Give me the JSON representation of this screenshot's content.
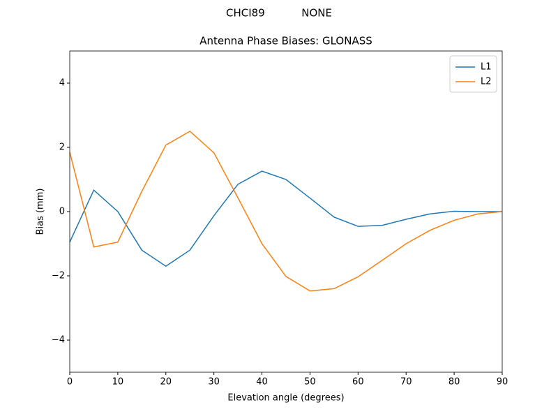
{
  "chart_data": {
    "type": "line",
    "suptitle": "CHCI89           NONE",
    "title": "Antenna Phase Biases: GLONASS",
    "x_label": "Elevation angle (degrees)",
    "y_label": "Bias (mm)",
    "x": [
      0,
      5,
      10,
      15,
      20,
      25,
      30,
      35,
      40,
      45,
      50,
      55,
      60,
      65,
      70,
      75,
      80,
      85,
      90
    ],
    "series": [
      {
        "name": "L1",
        "color": "#1f77b4",
        "values": [
          -0.95,
          0.67,
          0,
          -1.2,
          -1.7,
          -1.2,
          -0.13,
          0.85,
          1.26,
          1.0,
          0.42,
          -0.17,
          -0.46,
          -0.43,
          -0.24,
          -0.07,
          0.01,
          0,
          0
        ]
      },
      {
        "name": "L2",
        "color": "#ff7f0e",
        "values": [
          1.85,
          -1.1,
          -0.95,
          0.63,
          2.07,
          2.5,
          1.83,
          0.43,
          -1.0,
          -2.02,
          -2.47,
          -2.4,
          -2.03,
          -1.52,
          -1.0,
          -0.58,
          -0.27,
          -0.07,
          0
        ]
      }
    ],
    "xlim": [
      0,
      90
    ],
    "xticks": [
      0,
      10,
      20,
      30,
      40,
      50,
      60,
      70,
      80,
      90
    ],
    "ylim": [
      -5,
      5
    ],
    "yticks": [
      {
        "value": -4,
        "label": "−4"
      },
      {
        "value": -2,
        "label": "−2"
      },
      0,
      2,
      4
    ],
    "legend": "upper-right",
    "grid": false
  }
}
